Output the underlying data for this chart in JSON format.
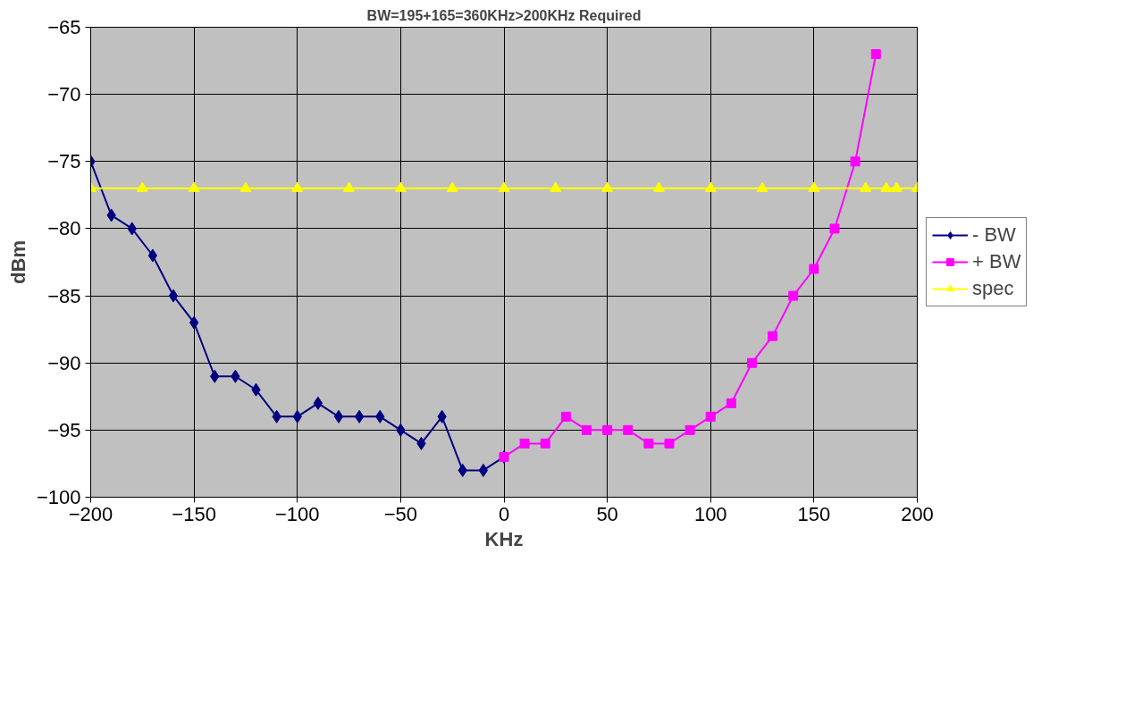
{
  "chart_data": {
    "type": "line",
    "title": "BW=195+165=360KHz>200KHz Required",
    "xlabel": "KHz",
    "ylabel": "dBm",
    "xlim": [
      -200,
      200
    ],
    "ylim": [
      -100,
      -65
    ],
    "xticks": [
      -200,
      -150,
      -100,
      -50,
      0,
      50,
      100,
      150,
      200
    ],
    "yticks": [
      -100,
      -95,
      -90,
      -85,
      -80,
      -75,
      -70,
      -65
    ],
    "grid": true,
    "legend": "right",
    "series": [
      {
        "name": "- BW",
        "color": "#000080",
        "marker": "diamond",
        "x": [
          -200,
          -190,
          -180,
          -170,
          -160,
          -150,
          -140,
          -130,
          -120,
          -110,
          -100,
          -90,
          -80,
          -70,
          -60,
          -50,
          -40,
          -30,
          -20,
          -10,
          0
        ],
        "values": [
          -75,
          -79,
          -80,
          -82,
          -85,
          -87,
          -91,
          -91,
          -92,
          -94,
          -94,
          -93,
          -94,
          -94,
          -94,
          -95,
          -96,
          -94,
          -98,
          -98,
          -97
        ]
      },
      {
        "name": "+ BW",
        "color": "#ff00ff",
        "marker": "square",
        "x": [
          0,
          10,
          20,
          30,
          40,
          50,
          60,
          70,
          80,
          90,
          100,
          110,
          120,
          130,
          140,
          150,
          160,
          170,
          180
        ],
        "values": [
          -97,
          -96,
          -96,
          -94,
          -95,
          -95,
          -95,
          -96,
          -96,
          -95,
          -94,
          -93,
          -90,
          -88,
          -85,
          -83,
          -80,
          -75,
          -67
        ]
      },
      {
        "name": "spec",
        "color": "#ffff00",
        "marker": "triangle",
        "x": [
          -200,
          -175,
          -150,
          -125,
          -100,
          -75,
          -50,
          -25,
          0,
          25,
          50,
          75,
          100,
          125,
          150,
          175,
          185,
          190,
          200
        ],
        "values": [
          -77,
          -77,
          -77,
          -77,
          -77,
          -77,
          -77,
          -77,
          -77,
          -77,
          -77,
          -77,
          -77,
          -77,
          -77,
          -77,
          -77,
          -77,
          -77
        ]
      }
    ]
  }
}
